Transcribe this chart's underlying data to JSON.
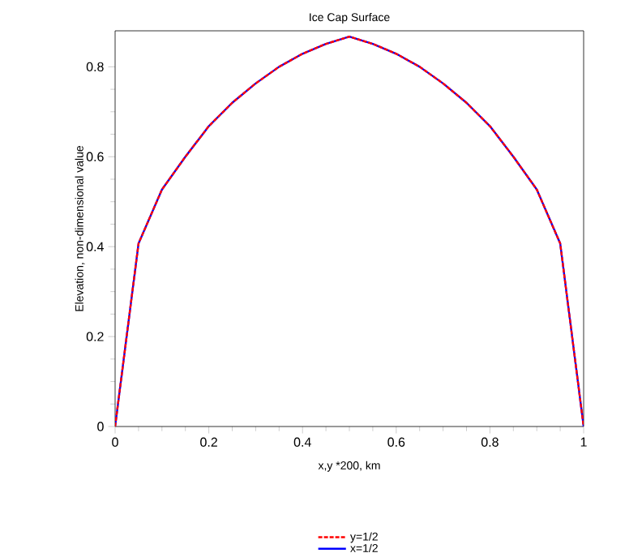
{
  "chart_data": {
    "type": "line",
    "title": "Ice Cap Surface",
    "xlabel": "x,y *200, km",
    "ylabel": "Elevation, non-dimensional value",
    "x": [
      0,
      0.05,
      0.1,
      0.15,
      0.2,
      0.25,
      0.3,
      0.35,
      0.4,
      0.45,
      0.5,
      0.55,
      0.6,
      0.65,
      0.7,
      0.75,
      0.8,
      0.85,
      0.9,
      0.95,
      1
    ],
    "series": [
      {
        "name": "y=1/2",
        "color": "#ff0000",
        "line_style": "dashed",
        "values": [
          0,
          0.407,
          0.527,
          0.6,
          0.668,
          0.72,
          0.763,
          0.8,
          0.829,
          0.851,
          0.867,
          0.851,
          0.829,
          0.8,
          0.763,
          0.72,
          0.668,
          0.6,
          0.527,
          0.407,
          0
        ]
      },
      {
        "name": "x=1/2",
        "color": "#0000ff",
        "line_style": "solid",
        "values": [
          0,
          0.407,
          0.527,
          0.6,
          0.668,
          0.72,
          0.763,
          0.8,
          0.829,
          0.851,
          0.867,
          0.851,
          0.829,
          0.8,
          0.763,
          0.72,
          0.668,
          0.6,
          0.527,
          0.407,
          0
        ]
      }
    ],
    "xlim": [
      0,
      1
    ],
    "ylim": [
      0,
      0.88
    ],
    "xticks": [
      0,
      0.2,
      0.4,
      0.6,
      0.8,
      1
    ],
    "yticks": [
      0,
      0.2,
      0.4,
      0.6,
      0.8
    ],
    "legend": "bottom",
    "grid": false,
    "marker": "none"
  }
}
